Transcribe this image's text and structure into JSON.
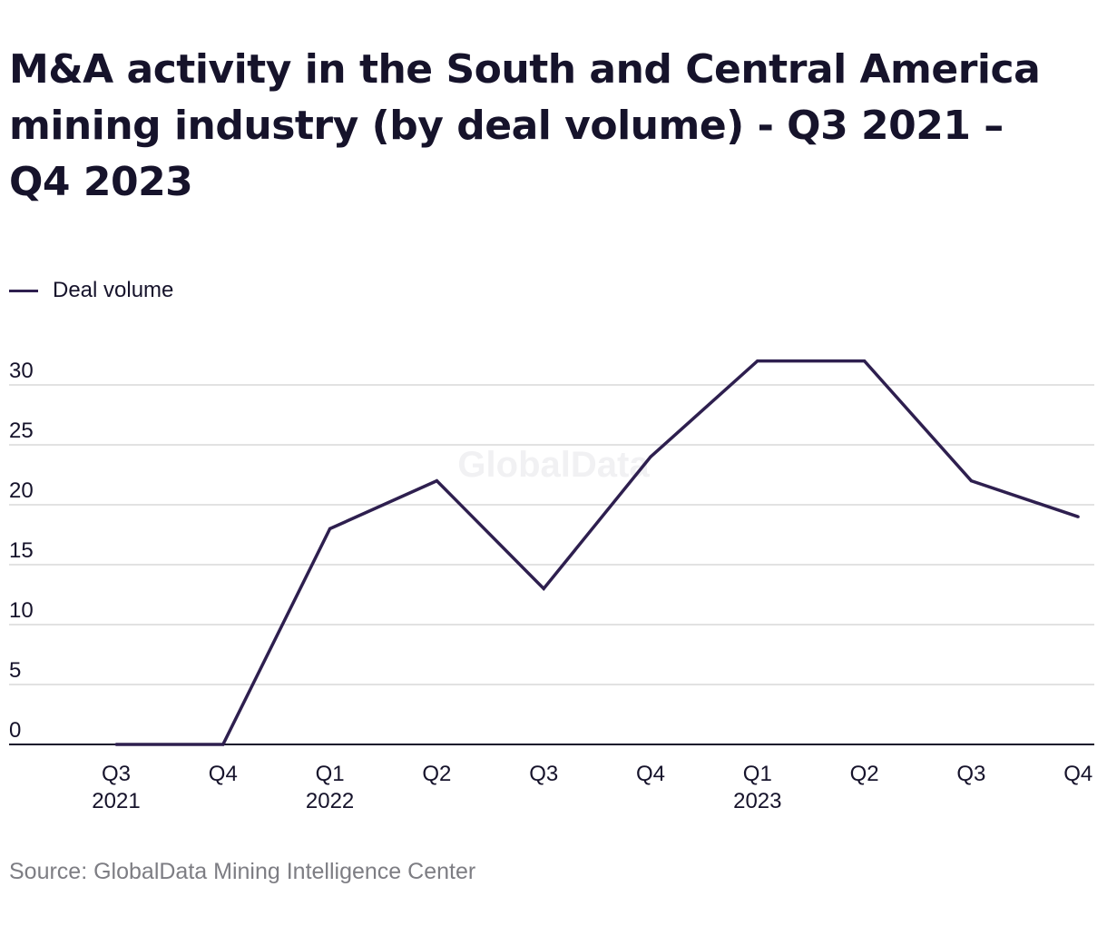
{
  "title": "M&A activity in the South and Central America mining industry (by deal volume) - Q3 2021 – Q4 2023",
  "legend": {
    "label": "Deal volume",
    "color": "#2e1f4f"
  },
  "watermark": "GlobalData",
  "source": "Source: GlobalData Mining Intelligence Center",
  "chart_data": {
    "type": "line",
    "categories": [
      "Q3",
      "Q4",
      "Q1",
      "Q2",
      "Q3",
      "Q4",
      "Q1",
      "Q2",
      "Q3",
      "Q4"
    ],
    "year_labels": [
      "2021",
      "",
      "2022",
      "",
      "",
      "",
      "2023",
      "",
      "",
      ""
    ],
    "series": [
      {
        "name": "Deal volume",
        "values": [
          0,
          0,
          18,
          22,
          13,
          24,
          32,
          32,
          22,
          19
        ],
        "color": "#2e1f4f"
      }
    ],
    "yticks": [
      0,
      5,
      10,
      15,
      20,
      25,
      30
    ],
    "ylim": [
      0,
      30
    ],
    "grid": true,
    "legend_position": "top-left",
    "xlabel": "",
    "ylabel": "",
    "gridline_color": "#d9d9d9",
    "axis_color": "#16132b"
  }
}
